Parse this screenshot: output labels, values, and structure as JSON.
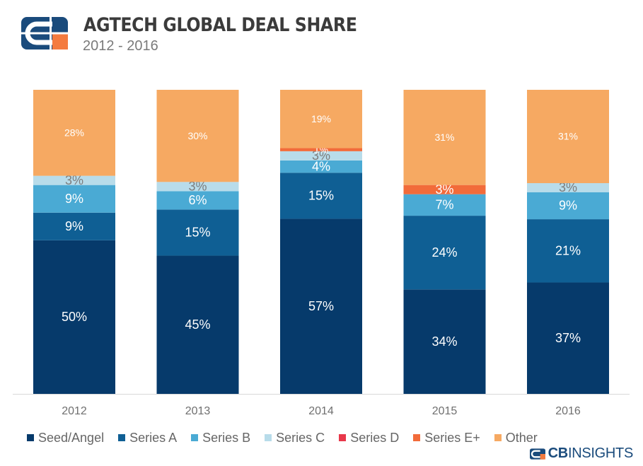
{
  "header": {
    "title": "AGTECH GLOBAL DEAL SHARE",
    "subtitle": "2012 - 2016"
  },
  "brand": {
    "prefix": "CB",
    "suffix": "INSIGHTS"
  },
  "colors": {
    "Seed/Angel": "#063a6b",
    "Series A": "#0f5f94",
    "Series B": "#4aaad4",
    "Series C": "#b8dcea",
    "Series D": "#e8384a",
    "Series E+": "#f26b3a",
    "Other": "#f6a962",
    "logo_blue": "#1a4b7c",
    "logo_orange": "#f47b3f"
  },
  "chart_data": {
    "type": "bar",
    "stacked": true,
    "normalized": true,
    "title": "AGTECH GLOBAL DEAL SHARE",
    "subtitle": "2012 - 2016",
    "xlabel": "",
    "ylabel": "",
    "ylim": [
      0,
      100
    ],
    "grid": false,
    "legend_position": "bottom",
    "categories": [
      "2012",
      "2013",
      "2014",
      "2015",
      "2016"
    ],
    "series": [
      {
        "name": "Seed/Angel",
        "values": [
          50,
          45,
          57,
          34,
          37
        ],
        "labels": [
          "50%",
          "45%",
          "57%",
          "34%",
          "37%"
        ]
      },
      {
        "name": "Series A",
        "values": [
          9,
          15,
          15,
          24,
          21
        ],
        "labels": [
          "9%",
          "15%",
          "15%",
          "24%",
          "21%"
        ]
      },
      {
        "name": "Series B",
        "values": [
          9,
          6,
          4,
          7,
          9
        ],
        "labels": [
          "9%",
          "6%",
          "4%",
          "7%",
          "9%"
        ]
      },
      {
        "name": "Series C",
        "values": [
          3,
          3,
          3,
          0,
          3
        ],
        "labels": [
          "3%",
          "3%",
          "3%",
          "",
          "3%"
        ]
      },
      {
        "name": "Series D",
        "values": [
          0,
          0,
          0,
          0,
          0
        ],
        "labels": [
          "",
          "",
          "",
          "",
          ""
        ]
      },
      {
        "name": "Series E+",
        "values": [
          0,
          0,
          1,
          3,
          0
        ],
        "labels": [
          "",
          "",
          "1%",
          "3%",
          ""
        ]
      },
      {
        "name": "Other",
        "values": [
          28,
          30,
          19,
          31,
          31
        ],
        "labels": [
          "28%",
          "30%",
          "19%",
          "31%",
          "31%"
        ]
      }
    ]
  }
}
